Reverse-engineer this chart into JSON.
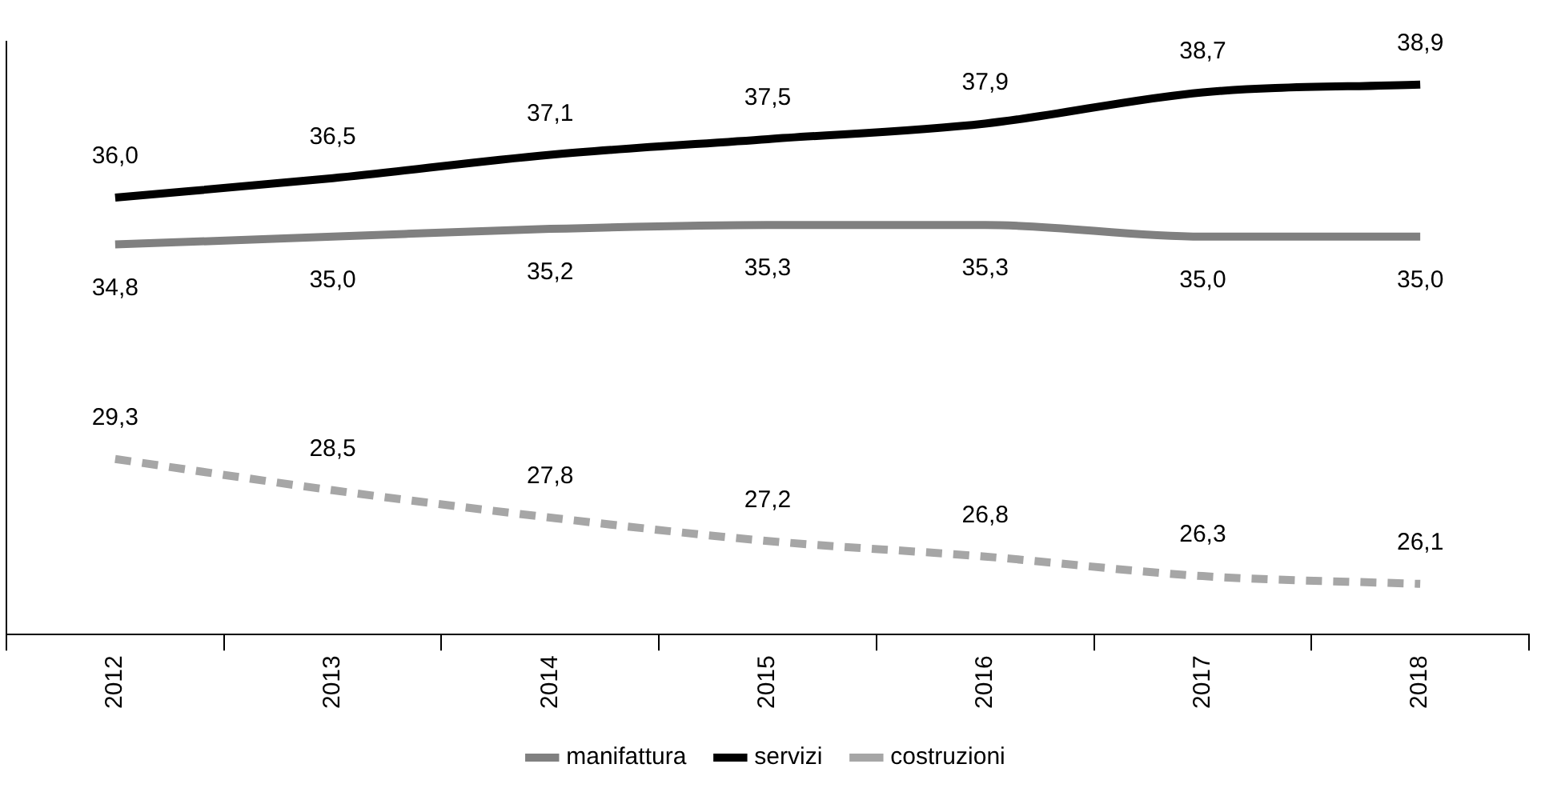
{
  "chart_data": {
    "type": "line",
    "categories": [
      "2012",
      "2013",
      "2014",
      "2015",
      "2016",
      "2017",
      "2018"
    ],
    "ylim": [
      24.8,
      40
    ],
    "grid": false,
    "legend": "bottom",
    "line_style": "solid",
    "marker": "none",
    "tick_labels": "x",
    "series": [
      {
        "name": "manifattura",
        "color": "#808080",
        "values": [
          34.8,
          35.0,
          35.2,
          35.3,
          35.3,
          35.0,
          35.0
        ],
        "value_labels": [
          "34,8",
          "35,0",
          "35,2",
          "35,3",
          "35,3",
          "35,0",
          "35,0"
        ]
      },
      {
        "name": "servizi",
        "color": "#000000",
        "values": [
          36.0,
          36.5,
          37.1,
          37.5,
          37.9,
          38.7,
          38.9
        ],
        "value_labels": [
          "36,0",
          "36,5",
          "37,1",
          "37,5",
          "37,9",
          "38,7",
          "38,9"
        ]
      },
      {
        "name": "costruzioni",
        "color": "#a6a6a6",
        "line_style": "dashed",
        "values": [
          29.3,
          28.5,
          27.8,
          27.2,
          26.8,
          26.3,
          26.1
        ],
        "value_labels": [
          "29,3",
          "28,5",
          "27,8",
          "27,2",
          "26,8",
          "26,3",
          "26,1"
        ]
      }
    ]
  }
}
